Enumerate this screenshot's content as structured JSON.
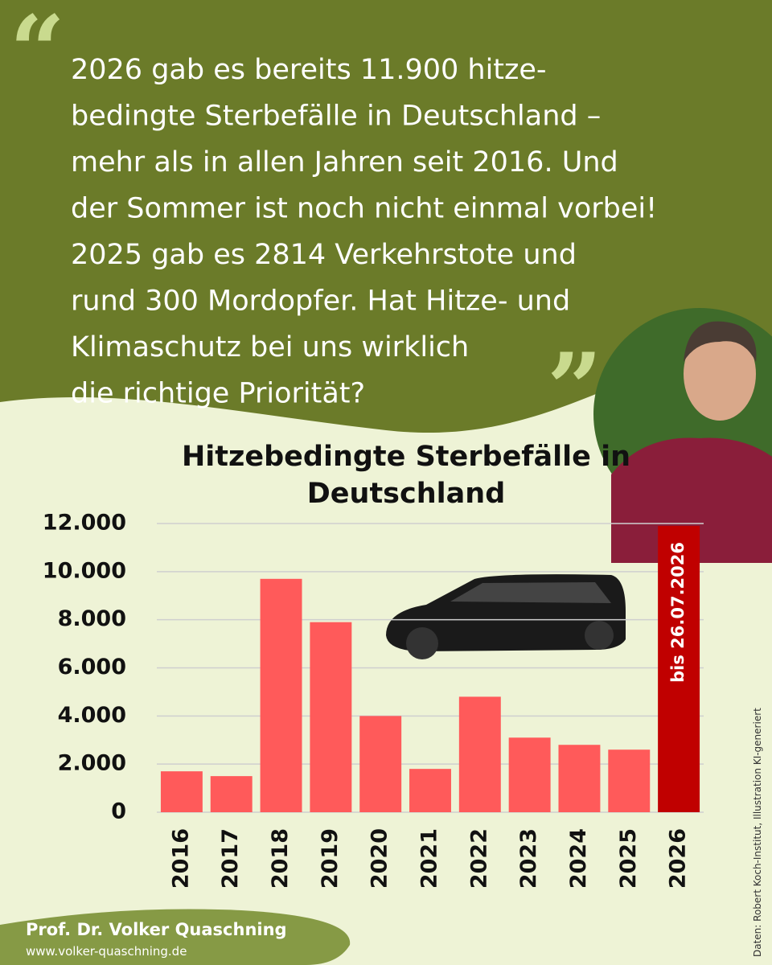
{
  "quote_lines": [
    "2026 gab es bereits 11.900 hitze-",
    "bedingte Sterbefälle in Deutschland –",
    "mehr als in allen Jahren seit 2016. Und",
    "der Sommer ist noch nicht einmal vorbei!",
    "2025 gab es 2814 Verkehrstote und",
    "rund 300 Mordopfer. Hat Hitze- und",
    "Klimaschutz bei uns wirklich",
    "die richtige Priorität?"
  ],
  "chart_data": {
    "type": "bar",
    "title": "Hitzebedingte Sterbefälle in Deutschland",
    "categories": [
      "2016",
      "2017",
      "2018",
      "2019",
      "2020",
      "2021",
      "2022",
      "2023",
      "2024",
      "2025",
      "2026"
    ],
    "values": [
      1700,
      1500,
      9700,
      7900,
      4000,
      1800,
      4800,
      3100,
      2800,
      2600,
      11900
    ],
    "colors": [
      "#ff5a5a",
      "#ff5a5a",
      "#ff5a5a",
      "#ff5a5a",
      "#ff5a5a",
      "#ff5a5a",
      "#ff5a5a",
      "#ff5a5a",
      "#ff5a5a",
      "#ff5a5a",
      "#c00000"
    ],
    "annotation": "bis 26.07.2026",
    "ylim": [
      0,
      12000
    ],
    "yticks": [
      0,
      {
        "value": 2000,
        "label": "2.000"
      },
      {
        "value": 4000,
        "label": "4.000"
      },
      {
        "value": 6000,
        "label": "6.000"
      },
      {
        "value": 8000,
        "label": "8.000"
      },
      {
        "value": 10000,
        "label": "10.000"
      },
      {
        "value": 12000,
        "label": "12.000"
      }
    ],
    "grid": true
  },
  "footer": {
    "name": "Prof. Dr. Volker Quaschning",
    "website": "www.volker-quaschning.de",
    "source": "Daten: Robert Koch-Institut, Illustration KI-generiert"
  }
}
